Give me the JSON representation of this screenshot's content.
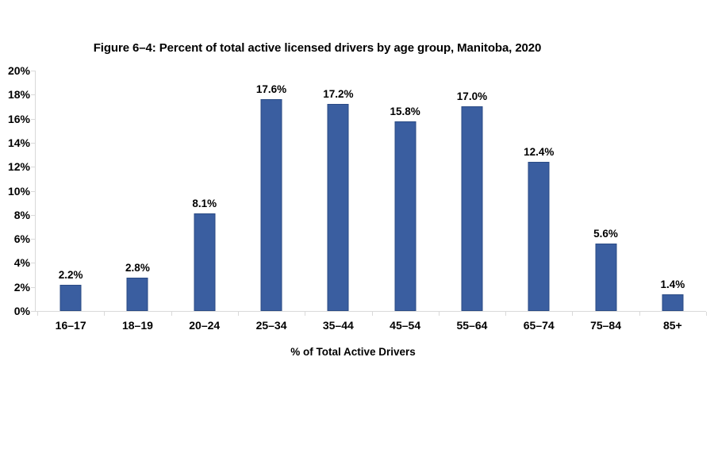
{
  "chart_data": {
    "type": "bar",
    "title": "Figure 6–4: Percent of total active licensed drivers by age group, Manitoba, 2020",
    "categories": [
      "16–17",
      "18–19",
      "20–24",
      "25–34",
      "35–44",
      "45–54",
      "55–64",
      "65–74",
      "75–84",
      "85+"
    ],
    "values": [
      2.2,
      2.8,
      8.1,
      17.6,
      17.2,
      15.8,
      17.0,
      12.4,
      5.6,
      1.4
    ],
    "value_labels": [
      "2.2%",
      "2.8%",
      "8.1%",
      "17.6%",
      "17.2%",
      "15.8%",
      "17.0%",
      "12.4%",
      "5.6%",
      "1.4%"
    ],
    "xlabel": "% of Total Active Drivers",
    "ylabel": "",
    "ylim": [
      0,
      20
    ],
    "y_tick_step": 2,
    "y_tick_labels": [
      "0%",
      "2%",
      "4%",
      "6%",
      "8%",
      "10%",
      "12%",
      "14%",
      "16%",
      "18%",
      "20%"
    ],
    "grid": false,
    "legend": "none",
    "bar_color": "#3a5ea0",
    "bar_border_color": "#2b4b85",
    "axis_color": "#d9d9d9",
    "text_color": "#000000",
    "background_color": "#ffffff"
  }
}
